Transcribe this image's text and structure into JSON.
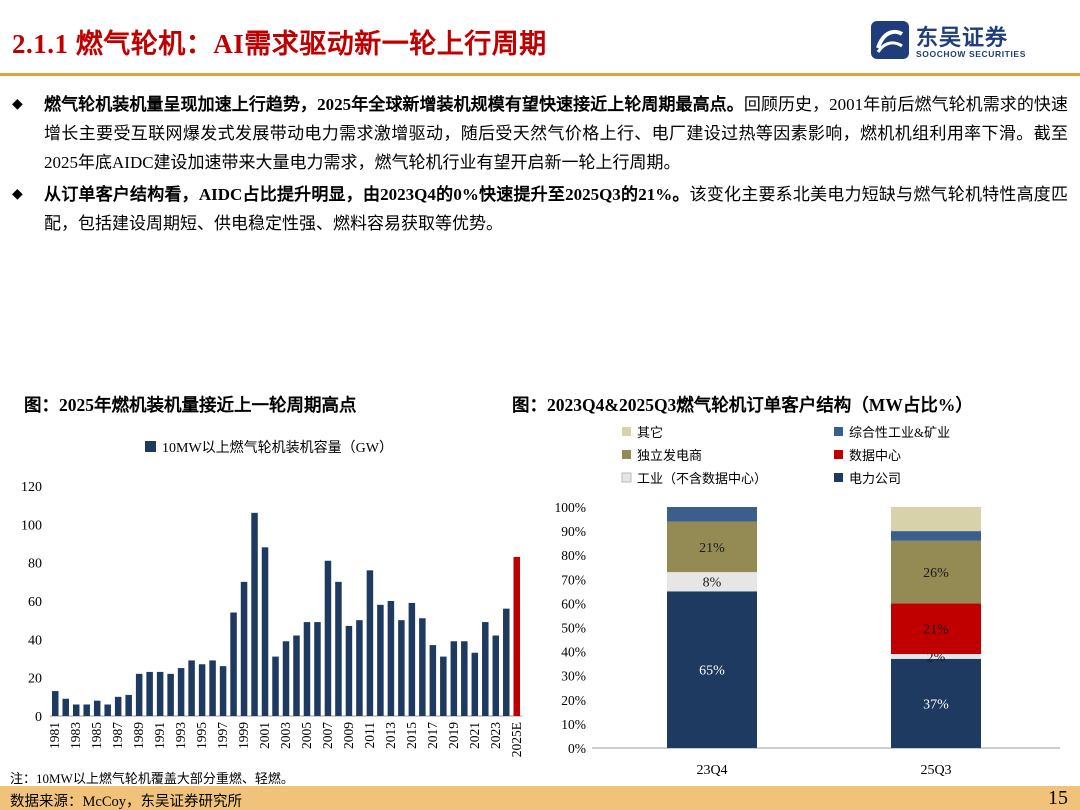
{
  "header": {
    "title": "2.1.1 燃气轮机：AI需求驱动新一轮上行周期",
    "logo_cn": "东吴证券",
    "logo_en": "SOOCHOW SECURITIES"
  },
  "bullets": [
    {
      "bold": "燃气轮机装机量呈现加速上行趋势，2025年全球新增装机规模有望快速接近上轮周期最高点。",
      "text": "回顾历史，2001年前后燃气轮机需求的快速增长主要受互联网爆发式发展带动电力需求激增驱动，随后受天然气价格上行、电厂建设过热等因素影响，燃机机组利用率下滑。截至2025年底AIDC建设加速带来大量电力需求，燃气轮机行业有望开启新一轮上行周期。"
    },
    {
      "bold": "从订单客户结构看，AIDC占比提升明显，由2023Q4的0%快速提升至2025Q3的21%。",
      "text": "该变化主要系北美电力短缺与燃气轮机特性高度匹配，包括建设周期短、供电稳定性强、燃料容易获取等优势。"
    }
  ],
  "bullet_icon": "diamond-bullet-icon",
  "charts": {
    "left_title": "图：2025年燃机装机量接近上一轮周期高点",
    "right_title": "图：2023Q4&2025Q3燃气轮机订单客户结构（MW占比%）"
  },
  "colors": {
    "title_red": "#c00000",
    "accent_orange": "#e3a23c",
    "footer_bg": "#f0c27a",
    "navy": "#1f3a60",
    "red": "#c00000"
  },
  "chart_data": [
    {
      "type": "bar",
      "title": "图：2025年燃机装机量接近上一轮周期高点",
      "legend": [
        "10MW以上燃气轮机装机容量（GW）"
      ],
      "legend_position": "top",
      "ylim": [
        0,
        120
      ],
      "yticks": [
        0,
        20,
        40,
        60,
        80,
        100,
        120
      ],
      "xtick_labels": [
        "1981",
        "1983",
        "1985",
        "1987",
        "1989",
        "1991",
        "1993",
        "1995",
        "1997",
        "1999",
        "2001",
        "2003",
        "2005",
        "2007",
        "2009",
        "2011",
        "2013",
        "2015",
        "2017",
        "2019",
        "2021",
        "2023",
        "2025E"
      ],
      "categories": [
        "1981",
        "1982",
        "1983",
        "1984",
        "1985",
        "1986",
        "1987",
        "1988",
        "1989",
        "1990",
        "1991",
        "1992",
        "1993",
        "1994",
        "1995",
        "1996",
        "1997",
        "1998",
        "1999",
        "2000",
        "2001",
        "2002",
        "2003",
        "2004",
        "2005",
        "2006",
        "2007",
        "2008",
        "2009",
        "2010",
        "2011",
        "2012",
        "2013",
        "2014",
        "2015",
        "2016",
        "2017",
        "2018",
        "2019",
        "2020",
        "2021",
        "2022",
        "2023",
        "2024",
        "2025E"
      ],
      "series": [
        {
          "name": "10MW以上燃气轮机装机容量（GW）",
          "color": "#1f3a60",
          "highlight_color": "#c00000",
          "values": [
            13,
            9,
            6,
            6,
            8,
            6,
            10,
            11,
            22,
            23,
            23,
            22,
            25,
            29,
            27,
            29,
            26,
            54,
            70,
            106,
            88,
            31,
            39,
            42,
            49,
            49,
            81,
            70,
            47,
            50,
            76,
            58,
            60,
            50,
            59,
            51,
            37,
            31,
            39,
            39,
            33,
            49,
            42,
            56,
            83
          ]
        }
      ],
      "note": "注：10MW以上燃气轮机覆盖大部分重燃、轻燃。"
    },
    {
      "type": "bar",
      "subtype": "stacked_percent",
      "title": "图：2023Q4&2025Q3燃气轮机订单客户结构（MW占比%）",
      "categories": [
        "23Q4",
        "25Q3"
      ],
      "ylim": [
        0,
        100
      ],
      "ytick_labels": [
        "0%",
        "10%",
        "20%",
        "30%",
        "40%",
        "50%",
        "60%",
        "70%",
        "80%",
        "90%",
        "100%"
      ],
      "legend_position": "top",
      "series": [
        {
          "name": "电力公司",
          "color": "#1f3a60",
          "values": [
            65,
            37
          ],
          "labels": [
            "65%",
            "37%"
          ]
        },
        {
          "name": "工业（不含数据中心）",
          "color": "#e6e6e6",
          "values": [
            8,
            2
          ],
          "labels": [
            "8%",
            "2%"
          ]
        },
        {
          "name": "数据中心",
          "color": "#c00000",
          "values": [
            0,
            21
          ],
          "labels": [
            "",
            "21%"
          ]
        },
        {
          "name": "独立发电商",
          "color": "#948a54",
          "values": [
            21,
            26
          ],
          "labels": [
            "21%",
            "26%"
          ]
        },
        {
          "name": "综合性工业&矿业",
          "color": "#3a5f8f",
          "values": [
            6,
            4
          ],
          "labels": [
            "",
            ""
          ]
        },
        {
          "name": "其它",
          "color": "#d8d2aa",
          "values": [
            0,
            10
          ],
          "labels": [
            "",
            ""
          ]
        }
      ],
      "legend_order": [
        "其它",
        "综合性工业&矿业",
        "独立发电商",
        "数据中心",
        "工业（不含数据中心）",
        "电力公司"
      ]
    }
  ],
  "footer": {
    "source": "数据来源：McCoy，东吴证券研究所",
    "page": "15"
  }
}
